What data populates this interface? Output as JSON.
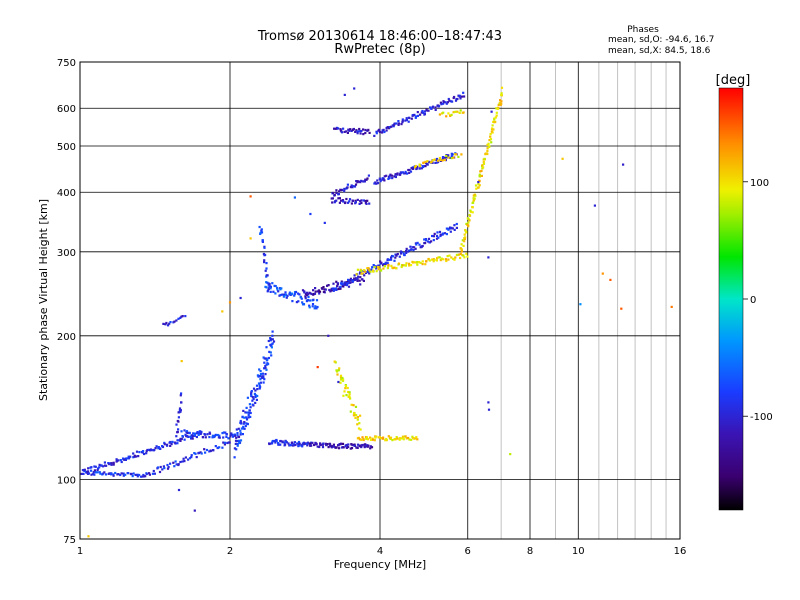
{
  "chart_data": {
    "type": "scatter",
    "title": "Tromsø 20130614 18:46:00–18:47:43",
    "subtitle": "RwPretec (8p)",
    "xlabel": "Frequency [MHz]",
    "ylabel": "Stationary phase Virtual Height [km]",
    "x_scale": "log",
    "y_scale": "log",
    "xlim": [
      1,
      16
    ],
    "ylim": [
      75,
      750
    ],
    "x_ticks": [
      1,
      2,
      4,
      6,
      8,
      10,
      16
    ],
    "x_tick_labels": [
      "1",
      "2",
      "4",
      "6",
      "8",
      "10",
      "16"
    ],
    "x_major_gridlines": [
      1,
      2,
      4,
      6,
      8,
      10
    ],
    "x_minor_gridlines": [
      7,
      9,
      11,
      12,
      13,
      14,
      15
    ],
    "y_ticks": [
      75,
      100,
      200,
      300,
      400,
      500,
      600,
      750
    ],
    "y_tick_labels": [
      "75",
      "100",
      "200",
      "300",
      "400",
      "500",
      "600",
      "750"
    ],
    "grid": true,
    "stats": {
      "heading": "Phases",
      "line_o": "mean, sd,O: -94.6, 16.7",
      "line_x": "mean, sd,X:  84.5, 18.6"
    },
    "colorbar": {
      "label": "[deg]",
      "range": [
        -180,
        180
      ],
      "ticks": [
        100,
        0,
        -100
      ],
      "tick_labels": [
        "100",
        "0",
        "-100"
      ]
    },
    "traces": [
      {
        "f_start": 1.0,
        "f_end": 1.75,
        "h_start": 103,
        "h_end": 125,
        "phase": -95,
        "jitter": 0.012,
        "count": 110
      },
      {
        "f_start": 1.02,
        "f_end": 1.35,
        "h_start": 103,
        "h_end": 102,
        "phase": -85,
        "jitter": 0.008,
        "count": 45
      },
      {
        "f_start": 1.35,
        "f_end": 2.0,
        "h_start": 102,
        "h_end": 120,
        "phase": -90,
        "jitter": 0.014,
        "count": 60
      },
      {
        "f_start": 1.56,
        "f_end": 1.6,
        "h_start": 125,
        "h_end": 150,
        "phase": -100,
        "jitter": 0.03,
        "count": 18
      },
      {
        "f_start": 1.6,
        "f_end": 2.1,
        "h_start": 125,
        "h_end": 123,
        "phase": -88,
        "jitter": 0.015,
        "count": 60
      },
      {
        "f_start": 2.05,
        "f_end": 2.45,
        "h_start": 118,
        "h_end": 196,
        "phase": -80,
        "jitter": 0.06,
        "count": 130
      },
      {
        "f_start": 2.4,
        "f_end": 2.9,
        "h_start": 120,
        "h_end": 118,
        "phase": -92,
        "jitter": 0.012,
        "count": 55
      },
      {
        "f_start": 2.9,
        "f_end": 3.85,
        "h_start": 118,
        "h_end": 117,
        "phase": -120,
        "jitter": 0.012,
        "count": 80
      },
      {
        "f_start": 3.25,
        "f_end": 3.65,
        "h_start": 172,
        "h_end": 130,
        "phase": 95,
        "jitter": 0.04,
        "count": 45
      },
      {
        "f_start": 3.6,
        "f_end": 4.75,
        "h_start": 122,
        "h_end": 122,
        "phase": 105,
        "jitter": 0.01,
        "count": 55
      },
      {
        "f_start": 2.3,
        "f_end": 2.4,
        "h_start": 340,
        "h_end": 250,
        "phase": -80,
        "jitter": 0.03,
        "count": 30
      },
      {
        "f_start": 2.35,
        "f_end": 3.0,
        "h_start": 255,
        "h_end": 232,
        "phase": -75,
        "jitter": 0.025,
        "count": 70
      },
      {
        "f_start": 2.8,
        "f_end": 3.7,
        "h_start": 245,
        "h_end": 262,
        "phase": -125,
        "jitter": 0.02,
        "count": 70
      },
      {
        "f_start": 3.2,
        "f_end": 5.7,
        "h_start": 250,
        "h_end": 340,
        "phase": -95,
        "jitter": 0.015,
        "count": 140
      },
      {
        "f_start": 3.6,
        "f_end": 6.0,
        "h_start": 272,
        "h_end": 295,
        "phase": 100,
        "jitter": 0.012,
        "count": 90
      },
      {
        "f_start": 5.8,
        "f_end": 7.05,
        "h_start": 300,
        "h_end": 650,
        "phase": 100,
        "jitter": 0.02,
        "count": 110
      },
      {
        "f_start": 3.2,
        "f_end": 3.8,
        "h_start": 385,
        "h_end": 380,
        "phase": -110,
        "jitter": 0.012,
        "count": 35
      },
      {
        "f_start": 3.2,
        "f_end": 3.8,
        "h_start": 395,
        "h_end": 430,
        "phase": -105,
        "jitter": 0.012,
        "count": 40
      },
      {
        "f_start": 3.9,
        "f_end": 5.7,
        "h_start": 420,
        "h_end": 480,
        "phase": -100,
        "jitter": 0.012,
        "count": 90
      },
      {
        "f_start": 4.7,
        "f_end": 5.8,
        "h_start": 455,
        "h_end": 480,
        "phase": 100,
        "jitter": 0.01,
        "count": 25
      },
      {
        "f_start": 3.25,
        "f_end": 3.8,
        "h_start": 540,
        "h_end": 535,
        "phase": -110,
        "jitter": 0.012,
        "count": 35
      },
      {
        "f_start": 3.9,
        "f_end": 5.9,
        "h_start": 530,
        "h_end": 640,
        "phase": -100,
        "jitter": 0.012,
        "count": 90
      },
      {
        "f_start": 5.3,
        "f_end": 5.9,
        "h_start": 580,
        "h_end": 590,
        "phase": 100,
        "jitter": 0.01,
        "count": 15
      },
      {
        "f_start": 1.47,
        "f_end": 1.62,
        "h_start": 210,
        "h_end": 220,
        "phase": -95,
        "jitter": 0.01,
        "count": 14
      }
    ],
    "isolated_points": [
      {
        "f": 9.3,
        "h": 470,
        "phase": 110
      },
      {
        "f": 12.3,
        "h": 457,
        "phase": -105
      },
      {
        "f": 10.8,
        "h": 375,
        "phase": -100
      },
      {
        "f": 10.1,
        "h": 233,
        "phase": -40
      },
      {
        "f": 11.2,
        "h": 270,
        "phase": 130
      },
      {
        "f": 11.6,
        "h": 262,
        "phase": 150
      },
      {
        "f": 12.2,
        "h": 228,
        "phase": 150
      },
      {
        "f": 15.4,
        "h": 230,
        "phase": 140
      },
      {
        "f": 6.6,
        "h": 292,
        "phase": -100
      },
      {
        "f": 6.3,
        "h": 420,
        "phase": -100
      },
      {
        "f": 6.7,
        "h": 590,
        "phase": -100
      },
      {
        "f": 6.6,
        "h": 145,
        "phase": -100
      },
      {
        "f": 6.62,
        "h": 140,
        "phase": -100
      },
      {
        "f": 7.3,
        "h": 113,
        "phase": 80
      },
      {
        "f": 1.7,
        "h": 86,
        "phase": -110
      },
      {
        "f": 1.58,
        "h": 95,
        "phase": -100
      },
      {
        "f": 1.6,
        "h": 177,
        "phase": 110
      },
      {
        "f": 1.04,
        "h": 76,
        "phase": 110
      },
      {
        "f": 3.55,
        "h": 660,
        "phase": -100
      },
      {
        "f": 3.4,
        "h": 640,
        "phase": -100
      },
      {
        "f": 2.7,
        "h": 390,
        "phase": -60
      },
      {
        "f": 2.9,
        "h": 360,
        "phase": -80
      },
      {
        "f": 3.1,
        "h": 345,
        "phase": -90
      },
      {
        "f": 2.2,
        "h": 392,
        "phase": 150
      },
      {
        "f": 2.2,
        "h": 320,
        "phase": 110
      },
      {
        "f": 2.0,
        "h": 235,
        "phase": 130
      },
      {
        "f": 2.1,
        "h": 240,
        "phase": -100
      },
      {
        "f": 1.93,
        "h": 225,
        "phase": 110
      },
      {
        "f": 3.15,
        "h": 200,
        "phase": -110
      },
      {
        "f": 3.0,
        "h": 172,
        "phase": 160
      },
      {
        "f": 3.3,
        "h": 160,
        "phase": -100
      }
    ]
  }
}
